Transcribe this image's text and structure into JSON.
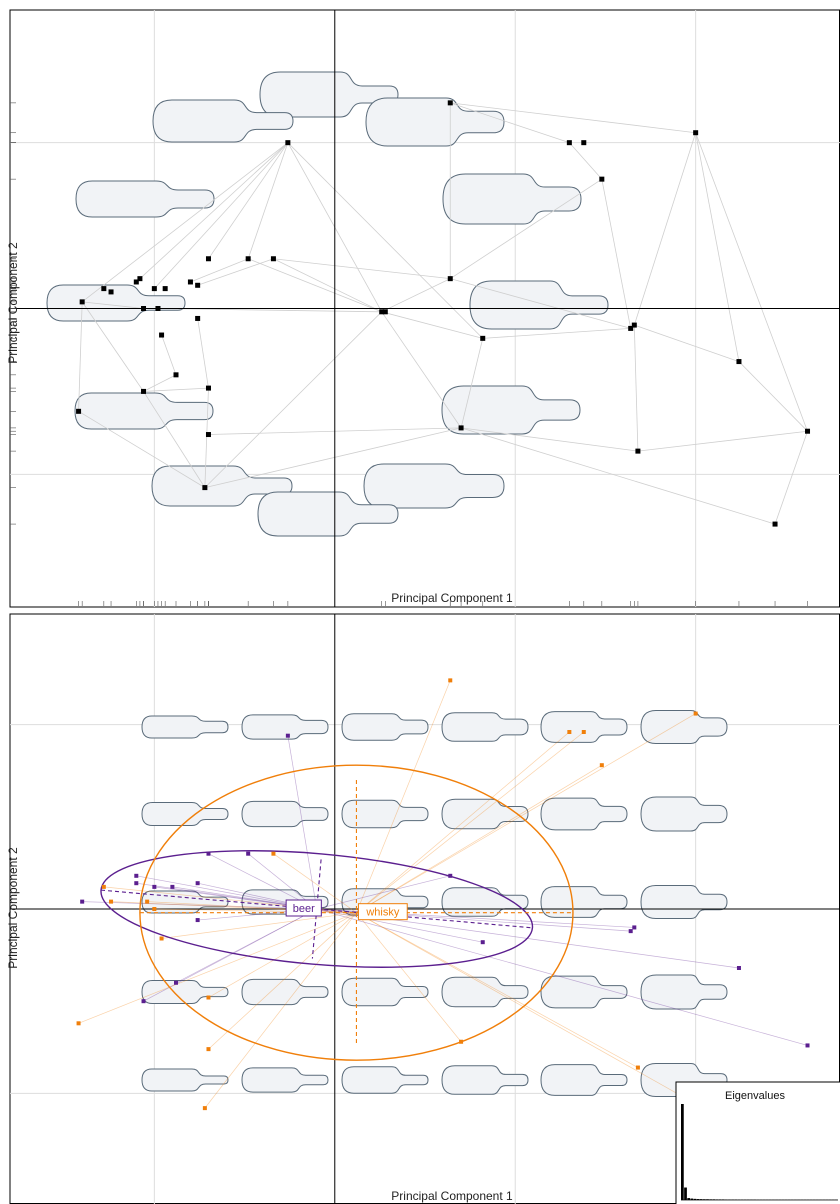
{
  "colors": {
    "beer": "#5b1f8f",
    "whisky": "#f07f0a",
    "point": "#000000",
    "outline": "#5a6b7a",
    "fill": "#f1f3f6"
  },
  "chart_data": [
    {
      "type": "scatter",
      "panel": "top",
      "xlabel": "Principal Component 1",
      "ylabel": "Principal Component 2",
      "xlim": [
        -0.9,
        1.4
      ],
      "ylim": [
        -0.9,
        0.9
      ],
      "gridlines_x": [
        -0.5,
        0.5,
        1.0
      ],
      "gridlines_y": [
        -0.5,
        0.5
      ],
      "points": [
        [
          -0.7,
          0.02
        ],
        [
          -0.64,
          0.06
        ],
        [
          -0.62,
          0.05
        ],
        [
          -0.55,
          0.08
        ],
        [
          -0.54,
          0.09
        ],
        [
          -0.5,
          0.06
        ],
        [
          -0.47,
          0.06
        ],
        [
          -0.4,
          0.08
        ],
        [
          -0.38,
          0.07
        ],
        [
          -0.35,
          0.15
        ],
        [
          -0.24,
          0.15
        ],
        [
          -0.17,
          0.15
        ],
        [
          -0.53,
          0.0
        ],
        [
          -0.49,
          0.0
        ],
        [
          -0.48,
          -0.08
        ],
        [
          -0.38,
          -0.03
        ],
        [
          -0.44,
          -0.2
        ],
        [
          -0.53,
          -0.25
        ],
        [
          -0.35,
          -0.24
        ],
        [
          -0.71,
          -0.31
        ],
        [
          -0.35,
          -0.38
        ],
        [
          -0.36,
          -0.54
        ],
        [
          -0.13,
          0.5
        ],
        [
          0.13,
          -0.01
        ],
        [
          0.14,
          -0.01
        ],
        [
          0.32,
          0.09
        ],
        [
          0.41,
          -0.09
        ],
        [
          0.35,
          -0.36
        ],
        [
          0.65,
          0.5
        ],
        [
          0.69,
          0.5
        ],
        [
          0.74,
          0.39
        ],
        [
          0.32,
          0.62
        ],
        [
          1.0,
          0.53
        ],
        [
          0.82,
          -0.06
        ],
        [
          0.83,
          -0.05
        ],
        [
          1.12,
          -0.16
        ],
        [
          0.84,
          -0.43
        ],
        [
          1.31,
          -0.37
        ],
        [
          1.22,
          -0.65
        ]
      ],
      "edges": [
        [
          -0.13,
          0.5,
          0.13,
          -0.01
        ],
        [
          -0.13,
          0.5,
          -0.7,
          0.02
        ],
        [
          -0.13,
          0.5,
          -0.55,
          0.08
        ],
        [
          -0.13,
          0.5,
          -0.35,
          0.15
        ],
        [
          -0.13,
          0.5,
          -0.24,
          0.15
        ],
        [
          -0.13,
          0.5,
          -0.5,
          0.06
        ],
        [
          -0.24,
          0.15,
          0.13,
          -0.01
        ],
        [
          -0.17,
          0.15,
          0.13,
          -0.01
        ],
        [
          -0.17,
          0.15,
          0.32,
          0.09
        ],
        [
          -0.7,
          0.02,
          -0.53,
          0.0
        ],
        [
          -0.7,
          0.02,
          -0.71,
          -0.31
        ],
        [
          -0.7,
          0.02,
          -0.53,
          -0.25
        ],
        [
          -0.53,
          -0.25,
          -0.35,
          -0.24
        ],
        [
          -0.53,
          -0.25,
          -0.44,
          -0.2
        ],
        [
          -0.53,
          -0.25,
          -0.36,
          -0.54
        ],
        [
          -0.71,
          -0.31,
          -0.36,
          -0.54
        ],
        [
          -0.35,
          -0.24,
          -0.36,
          -0.54
        ],
        [
          -0.35,
          -0.38,
          0.35,
          -0.36
        ],
        [
          -0.36,
          -0.54,
          0.35,
          -0.36
        ],
        [
          -0.48,
          -0.08,
          -0.44,
          -0.2
        ],
        [
          -0.38,
          -0.03,
          -0.35,
          -0.24
        ],
        [
          0.13,
          -0.01,
          0.32,
          0.09
        ],
        [
          0.13,
          -0.01,
          0.41,
          -0.09
        ],
        [
          0.13,
          -0.01,
          0.35,
          -0.36
        ],
        [
          0.13,
          -0.01,
          -0.49,
          0.0
        ],
        [
          0.13,
          -0.01,
          -0.36,
          -0.54
        ],
        [
          0.32,
          0.09,
          0.32,
          0.62
        ],
        [
          0.32,
          0.09,
          0.74,
          0.39
        ],
        [
          0.32,
          0.09,
          0.82,
          -0.06
        ],
        [
          0.32,
          0.62,
          1.0,
          0.53
        ],
        [
          0.32,
          0.62,
          0.65,
          0.5
        ],
        [
          0.65,
          0.5,
          0.74,
          0.39
        ],
        [
          0.74,
          0.39,
          0.82,
          -0.06
        ],
        [
          1.0,
          0.53,
          0.83,
          -0.05
        ],
        [
          1.0,
          0.53,
          1.12,
          -0.16
        ],
        [
          1.0,
          0.53,
          1.31,
          -0.37
        ],
        [
          0.41,
          -0.09,
          0.82,
          -0.06
        ],
        [
          0.41,
          -0.09,
          0.35,
          -0.36
        ],
        [
          0.83,
          -0.05,
          1.12,
          -0.16
        ],
        [
          0.83,
          -0.05,
          0.84,
          -0.43
        ],
        [
          0.35,
          -0.36,
          0.84,
          -0.43
        ],
        [
          0.35,
          -0.36,
          1.22,
          -0.65
        ],
        [
          1.12,
          -0.16,
          1.31,
          -0.37
        ],
        [
          1.31,
          -0.37,
          1.22,
          -0.65
        ],
        [
          0.84,
          -0.43,
          1.31,
          -0.37
        ],
        [
          -0.13,
          0.5,
          0.41,
          -0.09
        ],
        [
          -0.38,
          0.07,
          -0.17,
          0.15
        ],
        [
          -0.4,
          0.08,
          -0.24,
          0.15
        ]
      ],
      "grid": true,
      "legend": "none"
    },
    {
      "type": "scatter",
      "panel": "bottom",
      "xlabel": "Principal Component 1",
      "ylabel": "Principal Component 2",
      "xlim": [
        -0.9,
        1.4
      ],
      "ylim": [
        -0.8,
        0.8
      ],
      "gridlines_x": [
        -0.5,
        0.5,
        1.0
      ],
      "gridlines_y": [
        -0.5,
        0.5
      ],
      "series": [
        {
          "name": "beer",
          "centroid": [
            -0.05,
            0.0
          ],
          "ellipse": {
            "cx": -0.05,
            "cy": 0.0,
            "rx": 0.6,
            "ry": 0.15,
            "angle": 5
          },
          "points": [
            [
              -0.13,
              0.47
            ],
            [
              -0.35,
              0.15
            ],
            [
              -0.24,
              0.15
            ],
            [
              -0.7,
              0.02
            ],
            [
              -0.55,
              0.09
            ],
            [
              -0.55,
              0.07
            ],
            [
              -0.5,
              0.06
            ],
            [
              -0.45,
              0.06
            ],
            [
              -0.38,
              0.07
            ],
            [
              0.32,
              0.09
            ],
            [
              0.41,
              -0.09
            ],
            [
              0.82,
              -0.06
            ],
            [
              0.83,
              -0.05
            ],
            [
              1.12,
              -0.16
            ],
            [
              -0.44,
              -0.2
            ],
            [
              -0.53,
              -0.25
            ],
            [
              -0.38,
              -0.03
            ],
            [
              1.31,
              -0.37
            ]
          ]
        },
        {
          "name": "whisky",
          "centroid": [
            0.06,
            -0.01
          ],
          "ellipse": {
            "cx": 0.06,
            "cy": -0.01,
            "rx": 0.6,
            "ry": 0.4,
            "angle": 0
          },
          "points": [
            [
              0.32,
              0.62
            ],
            [
              1.0,
              0.53
            ],
            [
              0.65,
              0.48
            ],
            [
              0.69,
              0.48
            ],
            [
              0.74,
              0.39
            ],
            [
              -0.17,
              0.15
            ],
            [
              -0.64,
              0.06
            ],
            [
              -0.5,
              0.0
            ],
            [
              -0.48,
              -0.08
            ],
            [
              -0.71,
              -0.31
            ],
            [
              -0.35,
              -0.24
            ],
            [
              -0.35,
              -0.38
            ],
            [
              -0.36,
              -0.54
            ],
            [
              0.35,
              -0.36
            ],
            [
              0.84,
              -0.43
            ],
            [
              1.22,
              -0.65
            ],
            [
              -0.62,
              0.02
            ],
            [
              -0.52,
              0.02
            ]
          ]
        }
      ],
      "grid": true,
      "legend": "none"
    },
    {
      "type": "bar",
      "panel": "inset",
      "title": "Eigenvalues",
      "values": [
        1.0,
        0.13,
        0.02,
        0.015,
        0.012,
        0.01,
        0.009,
        0.008,
        0.008,
        0.007,
        0.007,
        0.006,
        0.006,
        0.006,
        0.005,
        0.005,
        0.005,
        0.005,
        0.004,
        0.004,
        0.004,
        0.004,
        0.004,
        0.004,
        0.003,
        0.003,
        0.003,
        0.003,
        0.003,
        0.003,
        0.003,
        0.003,
        0.003,
        0.003,
        0.003,
        0.003,
        0.003,
        0.003,
        0.003,
        0.003,
        0.003,
        0.003,
        0.003,
        0.003,
        0.003,
        0.003,
        0.003,
        0.003,
        0.003,
        0.003
      ]
    }
  ]
}
